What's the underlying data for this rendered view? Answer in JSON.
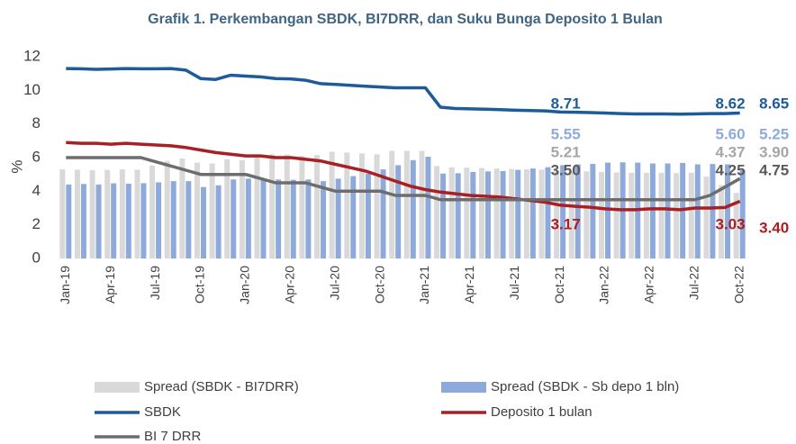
{
  "chart_data": {
    "type": "combo",
    "title": "Grafik 1. Perkembangan SBDK, BI7DRR, dan Suku Bunga Deposito 1 Bulan",
    "y_label": "%",
    "categories": [
      "Jan-19",
      null,
      null,
      "Apr-19",
      null,
      null,
      "Jul-19",
      null,
      null,
      "Oct-19",
      null,
      null,
      "Jan-20",
      null,
      null,
      "Apr-20",
      null,
      null,
      "Jul-20",
      null,
      null,
      "Oct-20",
      null,
      null,
      "Jan-21",
      null,
      null,
      "Apr-21",
      null,
      null,
      "Jul-21",
      null,
      null,
      "Oct-21",
      null,
      null,
      "Jan-22",
      null,
      null,
      "Apr-22",
      null,
      null,
      "Jul-22",
      null,
      null,
      "Oct-22"
    ],
    "ylim": [
      0,
      12
    ],
    "yticks": [
      0,
      2,
      4,
      6,
      8,
      10,
      12
    ],
    "series": [
      {
        "name": "Spread (SBDK - BI7DRR)",
        "type": "bar",
        "color": "#d9d9d9",
        "values": [
          5.3,
          5.28,
          5.25,
          5.27,
          5.3,
          5.28,
          5.53,
          5.8,
          5.95,
          5.7,
          5.65,
          5.9,
          5.85,
          6.05,
          6.2,
          6.18,
          6.1,
          6.15,
          6.35,
          6.3,
          6.25,
          6.2,
          6.4,
          6.4,
          6.4,
          5.5,
          5.42,
          5.4,
          5.38,
          5.35,
          5.32,
          5.3,
          5.28,
          5.21,
          5.2,
          5.18,
          5.15,
          5.12,
          5.1,
          5.1,
          5.1,
          5.08,
          5.1,
          4.87,
          4.37,
          3.9
        ],
        "value_labels": [
          null,
          null,
          null,
          null,
          null,
          null,
          null,
          null,
          null,
          null,
          null,
          null,
          null,
          null,
          null,
          null,
          null,
          null,
          null,
          null,
          null,
          null,
          null,
          null,
          null,
          null,
          null,
          null,
          null,
          null,
          null,
          null,
          null,
          "5.21",
          null,
          null,
          null,
          null,
          null,
          null,
          null,
          null,
          null,
          null,
          "4.37",
          "3.90"
        ]
      },
      {
        "name": "Spread (SBDK - Sb depo 1 bln)",
        "type": "bar",
        "color": "#8eaadb",
        "values": [
          4.4,
          4.43,
          4.4,
          4.47,
          4.45,
          4.48,
          4.53,
          4.6,
          4.6,
          4.25,
          4.35,
          4.7,
          4.75,
          4.7,
          4.7,
          4.68,
          4.7,
          4.6,
          4.75,
          4.9,
          5.05,
          5.3,
          5.55,
          5.85,
          6.05,
          5.05,
          5.07,
          5.15,
          5.18,
          5.2,
          5.27,
          5.35,
          5.43,
          5.55,
          5.6,
          5.63,
          5.7,
          5.72,
          5.7,
          5.65,
          5.65,
          5.68,
          5.6,
          5.62,
          5.6,
          5.25
        ],
        "value_labels": [
          null,
          null,
          null,
          null,
          null,
          null,
          null,
          null,
          null,
          null,
          null,
          null,
          null,
          null,
          null,
          null,
          null,
          null,
          null,
          null,
          null,
          null,
          null,
          null,
          null,
          null,
          null,
          null,
          null,
          null,
          null,
          null,
          null,
          "5.55",
          null,
          null,
          null,
          null,
          null,
          null,
          null,
          null,
          null,
          null,
          "5.60",
          "5.25"
        ]
      },
      {
        "name": "SBDK",
        "type": "line",
        "color": "#1f5b99",
        "values": [
          11.3,
          11.28,
          11.25,
          11.27,
          11.3,
          11.28,
          11.28,
          11.3,
          11.2,
          10.7,
          10.65,
          10.9,
          10.85,
          10.8,
          10.7,
          10.68,
          10.6,
          10.4,
          10.35,
          10.3,
          10.25,
          10.2,
          10.15,
          10.15,
          10.15,
          9.0,
          8.92,
          8.9,
          8.88,
          8.85,
          8.82,
          8.8,
          8.78,
          8.71,
          8.7,
          8.68,
          8.65,
          8.62,
          8.6,
          8.6,
          8.6,
          8.58,
          8.6,
          8.62,
          8.62,
          8.65
        ],
        "value_labels": [
          null,
          null,
          null,
          null,
          null,
          null,
          null,
          null,
          null,
          null,
          null,
          null,
          null,
          null,
          null,
          null,
          null,
          null,
          null,
          null,
          null,
          null,
          null,
          null,
          null,
          null,
          null,
          null,
          null,
          null,
          null,
          null,
          null,
          "8.71",
          null,
          null,
          null,
          null,
          null,
          null,
          null,
          null,
          null,
          null,
          "8.62",
          "8.65"
        ]
      },
      {
        "name": "Deposito 1 bulan",
        "type": "line",
        "color": "#a81f24",
        "values": [
          6.9,
          6.85,
          6.85,
          6.8,
          6.85,
          6.8,
          6.75,
          6.7,
          6.6,
          6.45,
          6.3,
          6.2,
          6.1,
          6.1,
          6.0,
          6.0,
          5.9,
          5.8,
          5.6,
          5.4,
          5.2,
          4.9,
          4.6,
          4.3,
          4.1,
          3.95,
          3.85,
          3.75,
          3.7,
          3.65,
          3.55,
          3.45,
          3.35,
          3.17,
          3.1,
          3.05,
          2.95,
          2.9,
          2.9,
          2.95,
          2.95,
          2.9,
          3.0,
          3.0,
          3.03,
          3.4
        ],
        "value_labels": [
          null,
          null,
          null,
          null,
          null,
          null,
          null,
          null,
          null,
          null,
          null,
          null,
          null,
          null,
          null,
          null,
          null,
          null,
          null,
          null,
          null,
          null,
          null,
          null,
          null,
          null,
          null,
          null,
          null,
          null,
          null,
          null,
          null,
          "3.17",
          null,
          null,
          null,
          null,
          null,
          null,
          null,
          null,
          null,
          null,
          "3.03",
          "3.40"
        ]
      },
      {
        "name": "BI 7 DRR",
        "type": "line",
        "color": "#6d6d6d",
        "values": [
          6.0,
          6.0,
          6.0,
          6.0,
          6.0,
          6.0,
          5.75,
          5.5,
          5.25,
          5.0,
          5.0,
          5.0,
          5.0,
          4.75,
          4.5,
          4.5,
          4.5,
          4.25,
          4.0,
          4.0,
          4.0,
          4.0,
          3.75,
          3.75,
          3.75,
          3.5,
          3.5,
          3.5,
          3.5,
          3.5,
          3.5,
          3.5,
          3.5,
          3.5,
          3.5,
          3.5,
          3.5,
          3.5,
          3.5,
          3.5,
          3.5,
          3.5,
          3.5,
          3.75,
          4.25,
          4.75
        ],
        "value_labels": [
          null,
          null,
          null,
          null,
          null,
          null,
          null,
          null,
          null,
          null,
          null,
          null,
          null,
          null,
          null,
          null,
          null,
          null,
          null,
          null,
          null,
          null,
          null,
          null,
          null,
          null,
          null,
          null,
          null,
          null,
          null,
          null,
          null,
          "3.50",
          null,
          null,
          null,
          null,
          null,
          null,
          null,
          null,
          null,
          null,
          "4.25",
          "4.75"
        ]
      }
    ]
  }
}
